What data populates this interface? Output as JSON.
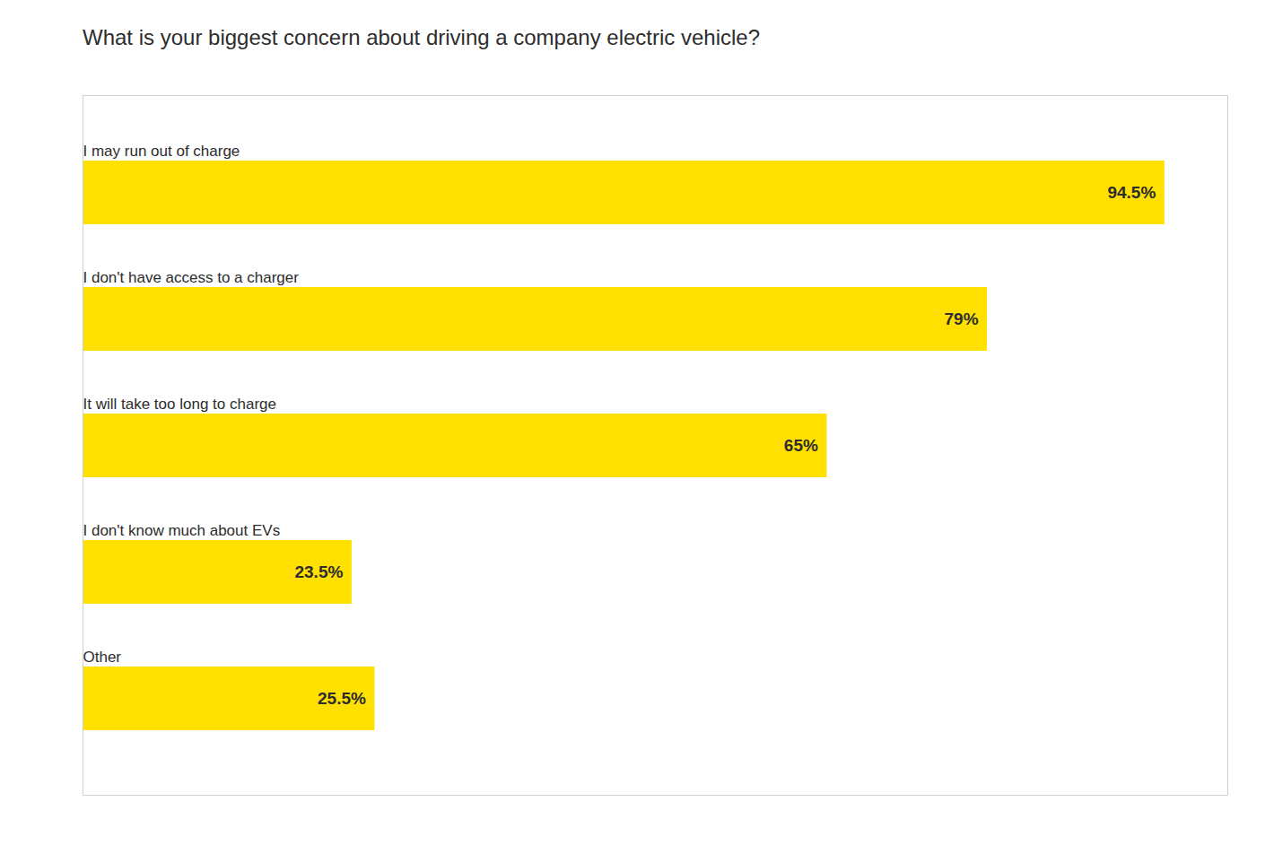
{
  "chart_data": {
    "type": "bar",
    "orientation": "horizontal",
    "title": "What is your biggest concern about driving a company electric vehicle?",
    "categories": [
      "I may run out of charge",
      "I don't have access to a charger",
      "It will take too long to charge",
      "I don't know much about EVs",
      "Other"
    ],
    "values": [
      94.5,
      79.0,
      65.0,
      23.5,
      25.5
    ],
    "value_labels": [
      "94.5%",
      "79%",
      "65%",
      "23.5%",
      "25.5%"
    ],
    "color": "#FFE000",
    "xlim": [
      0,
      100
    ],
    "data_labels": true,
    "tick_labels": false,
    "grid": false
  }
}
